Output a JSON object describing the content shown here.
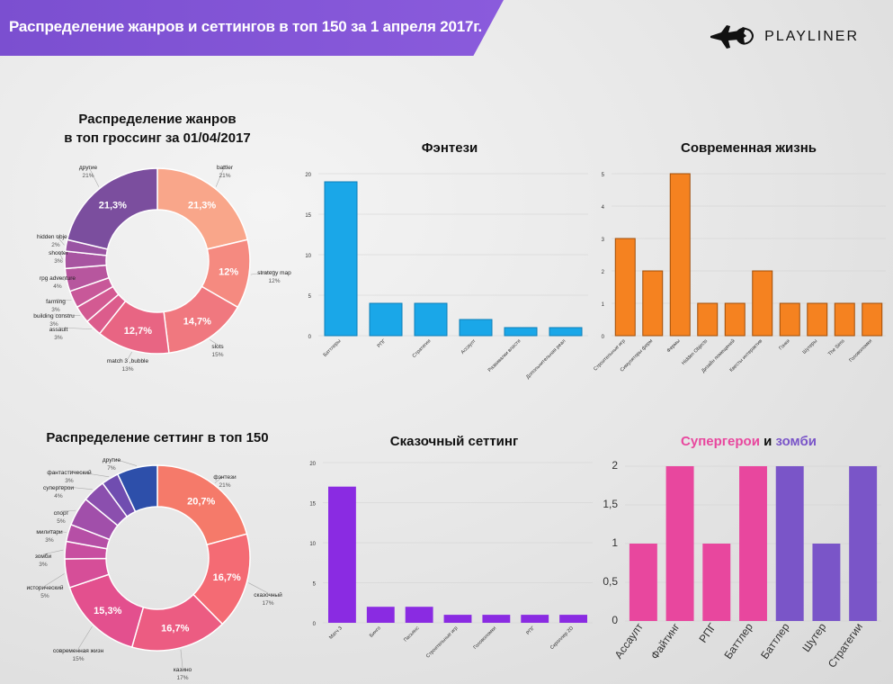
{
  "header": {
    "title": "Распределение жанров и сеттингов в топ 150 за 1 апреля 2017г.",
    "brand": "PLAYLINER",
    "accent": "#8a5bdc"
  },
  "chart_data": [
    {
      "id": "genres",
      "type": "pie",
      "title_line1": "Распределение жанров",
      "title_line2": "в топ гроссинг за 01/04/2017",
      "slices": [
        {
          "label": "battler",
          "value": 21.3,
          "pct": "21%",
          "inner": "21,3%",
          "color": "#f9a68a"
        },
        {
          "label": "strategy map",
          "value": 12,
          "pct": "12%",
          "inner": "12%",
          "color": "#f58a80"
        },
        {
          "label": "slots",
          "value": 14.7,
          "pct": "15%",
          "inner": "14,7%",
          "color": "#f0787f"
        },
        {
          "label": "match 3 ,bubble",
          "value": 12.7,
          "pct": "13%",
          "inner": "12,7%",
          "color": "#e86583"
        },
        {
          "label": "assault",
          "value": 3,
          "pct": "3%",
          "inner": "",
          "color": "#dc5c8c"
        },
        {
          "label": "building constru",
          "value": 3,
          "pct": "3%",
          "inner": "",
          "color": "#d35a92"
        },
        {
          "label": "farming",
          "value": 3,
          "pct": "3%",
          "inner": "",
          "color": "#c85899"
        },
        {
          "label": "rpg adventure",
          "value": 4,
          "pct": "4%",
          "inner": "",
          "color": "#b7569e"
        },
        {
          "label": "shooter",
          "value": 3,
          "pct": "3%",
          "inner": "",
          "color": "#a855a1"
        },
        {
          "label": "hidden objects",
          "value": 2,
          "pct": "2%",
          "inner": "",
          "color": "#9a54a3"
        },
        {
          "label": "другие",
          "value": 21.3,
          "pct": "21%",
          "inner": "21,3%",
          "color": "#7b4e9e"
        }
      ]
    },
    {
      "id": "fantasy",
      "type": "bar",
      "title": "Фэнтези",
      "color": "#1aa7e8",
      "ymax": 20,
      "yticks": [
        "0",
        "5",
        "10",
        "15",
        "20"
      ],
      "categories": [
        "Баттлеры",
        "РПГ",
        "Стратегии",
        "Ассаулт",
        "Развивалки власти",
        "Допольнительная реал"
      ],
      "values": [
        19,
        4,
        4,
        2,
        1,
        1
      ]
    },
    {
      "id": "modern",
      "type": "bar",
      "title": "Современная жизнь",
      "color": "#f58220",
      "ymax": 5,
      "yticks": [
        "0",
        "1",
        "2",
        "3",
        "4",
        "5"
      ],
      "categories": [
        "Строительные игр",
        "Симуляторы ферм",
        "Фермы",
        "Hidden Objects",
        "Дизайн помещений",
        "Квесты интерактив",
        "Гонки",
        "Шутеры",
        "The Sims",
        "Головоломки"
      ],
      "values": [
        3,
        2,
        5,
        1,
        1,
        2,
        1,
        1,
        1,
        1
      ]
    },
    {
      "id": "settings",
      "type": "pie",
      "title_line1": "Распределение сеттинг в топ 150",
      "slices": [
        {
          "label": "фэнтези",
          "value": 20.7,
          "pct": "21%",
          "inner": "20,7%",
          "color": "#f57a6a"
        },
        {
          "label": "сказочный",
          "value": 16.7,
          "pct": "17%",
          "inner": "16,7%",
          "color": "#f46b74"
        },
        {
          "label": "казино",
          "value": 16.7,
          "pct": "17%",
          "inner": "16,7%",
          "color": "#ec5c82"
        },
        {
          "label": "современная жизн",
          "value": 15.3,
          "pct": "15%",
          "inner": "15,3%",
          "color": "#e3508e"
        },
        {
          "label": "исторический",
          "value": 5,
          "pct": "5%",
          "inner": "",
          "color": "#d64e98"
        },
        {
          "label": "зомби",
          "value": 3,
          "pct": "3%",
          "inner": "",
          "color": "#c84ea0"
        },
        {
          "label": "милитари",
          "value": 3,
          "pct": "3%",
          "inner": "",
          "color": "#b64fa6"
        },
        {
          "label": "спорт",
          "value": 5,
          "pct": "5%",
          "inner": "",
          "color": "#a14faa"
        },
        {
          "label": "супергерои",
          "value": 4,
          "pct": "4%",
          "inner": "",
          "color": "#8b4fae"
        },
        {
          "label": "фантастический",
          "value": 3,
          "pct": "3%",
          "inner": "",
          "color": "#704db0"
        },
        {
          "label": "другие",
          "value": 7,
          "pct": "7%",
          "inner": "",
          "color": "#2d4faa"
        }
      ]
    },
    {
      "id": "fairy",
      "type": "bar",
      "title": "Сказочный сеттинг",
      "color": "#8a2be2",
      "ymax": 20,
      "yticks": [
        "0",
        "5",
        "10",
        "15",
        "20"
      ],
      "categories": [
        "Матч 3",
        "Бинго",
        "Пасьянс",
        "Строительные игр",
        "Головоломки",
        "РПГ",
        "Скроллер 2D"
      ],
      "values": [
        17,
        2,
        2,
        1,
        1,
        1,
        1
      ]
    },
    {
      "id": "hero-zombie",
      "type": "bar",
      "title_part1": "Супергерои",
      "title_mid": " и ",
      "title_part2": "зомби",
      "color1": "#e8479e",
      "color2": "#7a55c8",
      "ymax": 2,
      "yticks": [
        "0",
        "0,5",
        "1",
        "1,5",
        "2"
      ],
      "categories": [
        "Ассаулт",
        "Файтинг",
        "РПГ",
        "Баттлер",
        "Баттлер",
        "Шутер",
        "Стратегии"
      ],
      "values": [
        1,
        2,
        1,
        2,
        2,
        1,
        2
      ],
      "groups": [
        1,
        1,
        1,
        1,
        2,
        2,
        2
      ]
    }
  ]
}
